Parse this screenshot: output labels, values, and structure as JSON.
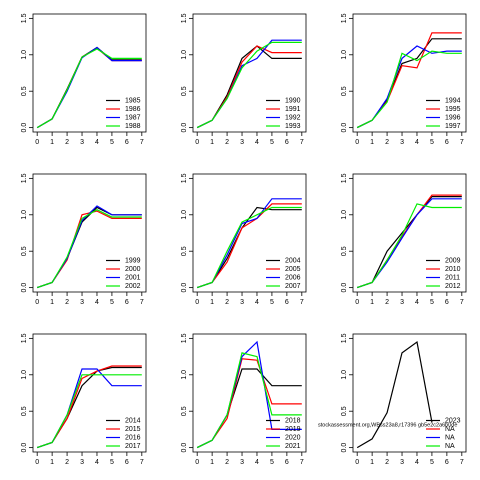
{
  "chart_data": [
    {
      "type": "line",
      "x": [
        0,
        1,
        2,
        3,
        4,
        5,
        6,
        7
      ],
      "xlim": [
        -0.28,
        7.28
      ],
      "ylim": [
        -0.06,
        1.56
      ],
      "xticks": [
        0,
        1,
        2,
        3,
        4,
        5,
        6,
        7
      ],
      "yticks": [
        {
          "value": 0,
          "label": "0.0"
        },
        {
          "value": 0.5,
          "label": "0.5"
        },
        {
          "value": 1,
          "label": "1.0"
        },
        {
          "value": 1.5,
          "label": "1.5"
        }
      ],
      "legend": "bottomright",
      "grid": false,
      "series": [
        {
          "name": "1985",
          "color": "#000000",
          "values": [
            0,
            0.12,
            0.53,
            0.97,
            1.1,
            0.93,
            0.93,
            0.93
          ]
        },
        {
          "name": "1986",
          "color": "#ff0000",
          "values": [
            0,
            0.12,
            0.52,
            0.97,
            1.09,
            0.92,
            0.92,
            0.92
          ]
        },
        {
          "name": "1987",
          "color": "#0000ff",
          "values": [
            0,
            0.12,
            0.5,
            0.96,
            1.1,
            0.92,
            0.92,
            0.92
          ]
        },
        {
          "name": "1988",
          "color": "#00ee00",
          "values": [
            0,
            0.12,
            0.52,
            0.97,
            1.08,
            0.95,
            0.95,
            0.95
          ]
        }
      ]
    },
    {
      "type": "line",
      "x": [
        0,
        1,
        2,
        3,
        4,
        5,
        6,
        7
      ],
      "xlim": [
        -0.28,
        7.28
      ],
      "ylim": [
        -0.06,
        1.56
      ],
      "xticks": [
        0,
        1,
        2,
        3,
        4,
        5,
        6,
        7
      ],
      "yticks": [
        {
          "value": 0,
          "label": "0.0"
        },
        {
          "value": 0.5,
          "label": "0.5"
        },
        {
          "value": 1,
          "label": "1.0"
        },
        {
          "value": 1.5,
          "label": "1.5"
        }
      ],
      "legend": "bottomright",
      "grid": false,
      "series": [
        {
          "name": "1990",
          "color": "#000000",
          "values": [
            0,
            0.1,
            0.45,
            0.95,
            1.12,
            0.95,
            0.95,
            0.95
          ]
        },
        {
          "name": "1991",
          "color": "#ff0000",
          "values": [
            0,
            0.1,
            0.42,
            0.9,
            1.12,
            1.03,
            1.03,
            1.03
          ]
        },
        {
          "name": "1992",
          "color": "#0000ff",
          "values": [
            0,
            0.1,
            0.4,
            0.85,
            0.95,
            1.2,
            1.2,
            1.2
          ]
        },
        {
          "name": "1993",
          "color": "#00ee00",
          "values": [
            0,
            0.1,
            0.4,
            0.82,
            1.05,
            1.17,
            1.17,
            1.17
          ]
        }
      ]
    },
    {
      "type": "line",
      "x": [
        0,
        1,
        2,
        3,
        4,
        5,
        6,
        7
      ],
      "xlim": [
        -0.28,
        7.28
      ],
      "ylim": [
        -0.06,
        1.56
      ],
      "xticks": [
        0,
        1,
        2,
        3,
        4,
        5,
        6,
        7
      ],
      "yticks": [
        {
          "value": 0,
          "label": "0.0"
        },
        {
          "value": 0.5,
          "label": "0.5"
        },
        {
          "value": 1,
          "label": "1.0"
        },
        {
          "value": 1.5,
          "label": "1.5"
        }
      ],
      "legend": "bottomright",
      "grid": false,
      "series": [
        {
          "name": "1994",
          "color": "#000000",
          "values": [
            0,
            0.1,
            0.38,
            0.88,
            0.95,
            1.22,
            1.22,
            1.22
          ]
        },
        {
          "name": "1995",
          "color": "#ff0000",
          "values": [
            0,
            0.1,
            0.36,
            0.85,
            0.82,
            1.3,
            1.3,
            1.3
          ]
        },
        {
          "name": "1996",
          "color": "#0000ff",
          "values": [
            0,
            0.1,
            0.4,
            0.95,
            1.12,
            1.02,
            1.05,
            1.05
          ]
        },
        {
          "name": "1997",
          "color": "#00ee00",
          "values": [
            0,
            0.1,
            0.35,
            1.02,
            0.92,
            1.05,
            1.02,
            1.02
          ]
        }
      ]
    },
    {
      "type": "line",
      "x": [
        0,
        1,
        2,
        3,
        4,
        5,
        6,
        7
      ],
      "xlim": [
        -0.28,
        7.28
      ],
      "ylim": [
        -0.06,
        1.56
      ],
      "xticks": [
        0,
        1,
        2,
        3,
        4,
        5,
        6,
        7
      ],
      "yticks": [
        {
          "value": 0,
          "label": "0.0"
        },
        {
          "value": 0.5,
          "label": "0.5"
        },
        {
          "value": 1,
          "label": "1.0"
        },
        {
          "value": 1.5,
          "label": "1.5"
        }
      ],
      "legend": "bottomright",
      "grid": false,
      "series": [
        {
          "name": "1999",
          "color": "#000000",
          "values": [
            0,
            0.07,
            0.4,
            0.9,
            1.1,
            1.0,
            1.0,
            1.0
          ]
        },
        {
          "name": "2000",
          "color": "#ff0000",
          "values": [
            0,
            0.07,
            0.38,
            1.0,
            1.05,
            0.95,
            0.95,
            0.95
          ]
        },
        {
          "name": "2001",
          "color": "#0000ff",
          "values": [
            0,
            0.07,
            0.4,
            0.92,
            1.12,
            1.0,
            1.0,
            1.0
          ]
        },
        {
          "name": "2002",
          "color": "#00ee00",
          "values": [
            0,
            0.07,
            0.42,
            0.95,
            1.07,
            0.97,
            0.97,
            0.97
          ]
        }
      ]
    },
    {
      "type": "line",
      "x": [
        0,
        1,
        2,
        3,
        4,
        5,
        6,
        7
      ],
      "xlim": [
        -0.28,
        7.28
      ],
      "ylim": [
        -0.06,
        1.56
      ],
      "xticks": [
        0,
        1,
        2,
        3,
        4,
        5,
        6,
        7
      ],
      "yticks": [
        {
          "value": 0,
          "label": "0.0"
        },
        {
          "value": 0.5,
          "label": "0.5"
        },
        {
          "value": 1,
          "label": "1.0"
        },
        {
          "value": 1.5,
          "label": "1.5"
        }
      ],
      "legend": "bottomright",
      "grid": false,
      "series": [
        {
          "name": "2004",
          "color": "#000000",
          "values": [
            0,
            0.07,
            0.4,
            0.82,
            1.1,
            1.07,
            1.07,
            1.07
          ]
        },
        {
          "name": "2005",
          "color": "#ff0000",
          "values": [
            0,
            0.07,
            0.35,
            0.82,
            0.95,
            1.15,
            1.15,
            1.15
          ]
        },
        {
          "name": "2006",
          "color": "#0000ff",
          "values": [
            0,
            0.07,
            0.45,
            0.88,
            0.95,
            1.22,
            1.22,
            1.22
          ]
        },
        {
          "name": "2007",
          "color": "#00ee00",
          "values": [
            0,
            0.07,
            0.5,
            0.9,
            1.0,
            1.1,
            1.1,
            1.1
          ]
        }
      ]
    },
    {
      "type": "line",
      "x": [
        0,
        1,
        2,
        3,
        4,
        5,
        6,
        7
      ],
      "xlim": [
        -0.28,
        7.28
      ],
      "ylim": [
        -0.06,
        1.56
      ],
      "xticks": [
        0,
        1,
        2,
        3,
        4,
        5,
        6,
        7
      ],
      "yticks": [
        {
          "value": 0,
          "label": "0.0"
        },
        {
          "value": 0.5,
          "label": "0.5"
        },
        {
          "value": 1,
          "label": "1.0"
        },
        {
          "value": 1.5,
          "label": "1.5"
        }
      ],
      "legend": "bottomright",
      "grid": false,
      "series": [
        {
          "name": "2009",
          "color": "#000000",
          "values": [
            0,
            0.07,
            0.5,
            0.75,
            1.0,
            1.25,
            1.25,
            1.25
          ]
        },
        {
          "name": "2010",
          "color": "#ff0000",
          "values": [
            0,
            0.07,
            0.38,
            0.7,
            1.0,
            1.27,
            1.27,
            1.27
          ]
        },
        {
          "name": "2011",
          "color": "#0000ff",
          "values": [
            0,
            0.07,
            0.35,
            0.68,
            1.0,
            1.22,
            1.22,
            1.22
          ]
        },
        {
          "name": "2012",
          "color": "#00ee00",
          "values": [
            0,
            0.07,
            0.38,
            0.72,
            1.15,
            1.1,
            1.1,
            1.1
          ]
        }
      ]
    },
    {
      "type": "line",
      "x": [
        0,
        1,
        2,
        3,
        4,
        5,
        6,
        7
      ],
      "xlim": [
        -0.28,
        7.28
      ],
      "ylim": [
        -0.06,
        1.56
      ],
      "xticks": [
        0,
        1,
        2,
        3,
        4,
        5,
        6,
        7
      ],
      "yticks": [
        {
          "value": 0,
          "label": "0.0"
        },
        {
          "value": 0.5,
          "label": "0.5"
        },
        {
          "value": 1,
          "label": "1.0"
        },
        {
          "value": 1.5,
          "label": "1.5"
        }
      ],
      "legend": "bottomright",
      "grid": false,
      "series": [
        {
          "name": "2014",
          "color": "#000000",
          "values": [
            0,
            0.07,
            0.4,
            0.85,
            1.05,
            1.1,
            1.1,
            1.1
          ]
        },
        {
          "name": "2015",
          "color": "#ff0000",
          "values": [
            0,
            0.07,
            0.4,
            0.95,
            1.05,
            1.12,
            1.12,
            1.12
          ]
        },
        {
          "name": "2016",
          "color": "#0000ff",
          "values": [
            0,
            0.07,
            0.45,
            1.08,
            1.08,
            0.85,
            0.85,
            0.85
          ]
        },
        {
          "name": "2017",
          "color": "#00ee00",
          "values": [
            0,
            0.07,
            0.45,
            1.0,
            1.0,
            1.0,
            1.0,
            1.0
          ]
        }
      ]
    },
    {
      "type": "line",
      "x": [
        0,
        1,
        2,
        3,
        4,
        5,
        6,
        7
      ],
      "xlim": [
        -0.28,
        7.28
      ],
      "ylim": [
        -0.06,
        1.56
      ],
      "xticks": [
        0,
        1,
        2,
        3,
        4,
        5,
        6,
        7
      ],
      "yticks": [
        {
          "value": 0,
          "label": "0.0"
        },
        {
          "value": 0.5,
          "label": "0.5"
        },
        {
          "value": 1,
          "label": "1.0"
        },
        {
          "value": 1.5,
          "label": "1.5"
        }
      ],
      "legend": "bottomright",
      "grid": false,
      "series": [
        {
          "name": "2018",
          "color": "#000000",
          "values": [
            0,
            0.1,
            0.45,
            1.08,
            1.08,
            0.85,
            0.85,
            0.85
          ]
        },
        {
          "name": "2019",
          "color": "#ff0000",
          "values": [
            0,
            0.1,
            0.4,
            1.22,
            1.2,
            0.6,
            0.6,
            0.6
          ]
        },
        {
          "name": "2020",
          "color": "#0000ff",
          "values": [
            0,
            0.1,
            0.45,
            1.25,
            1.45,
            0.25,
            0.25,
            0.25
          ]
        },
        {
          "name": "2021",
          "color": "#00ee00",
          "values": [
            0,
            0.1,
            0.45,
            1.3,
            1.25,
            0.45,
            0.45,
            0.45
          ]
        }
      ]
    },
    {
      "type": "line",
      "x": [
        0,
        1,
        2,
        3,
        4,
        5,
        6,
        7
      ],
      "xlim": [
        -0.28,
        7.28
      ],
      "ylim": [
        -0.06,
        1.56
      ],
      "xticks": [
        0,
        1,
        2,
        3,
        4,
        5,
        6,
        7
      ],
      "yticks": [
        {
          "value": 0,
          "label": "0.0"
        },
        {
          "value": 0.5,
          "label": "0.5"
        },
        {
          "value": 1,
          "label": "1.0"
        },
        {
          "value": 1.5,
          "label": "1.5"
        }
      ],
      "legend": "bottomright",
      "grid": false,
      "series": [
        {
          "name": "2023",
          "color": "#000000",
          "values": [
            0,
            0.12,
            0.48,
            1.3,
            1.45,
            0.35,
            null,
            null
          ]
        },
        {
          "name": "NA",
          "color": "#ff0000",
          "values": [
            null,
            null,
            null,
            null,
            null,
            null,
            null,
            null
          ]
        },
        {
          "name": "NA",
          "color": "#0000ff",
          "values": [
            null,
            null,
            null,
            null,
            null,
            null,
            null,
            null
          ]
        },
        {
          "name": "NA",
          "color": "#00ee00",
          "values": [
            null,
            null,
            null,
            null,
            null,
            null,
            null,
            null
          ]
        }
      ]
    }
  ],
  "watermark": "stockassessment.org,WBss23a8,r17396 gb5e2c2a6b0de"
}
